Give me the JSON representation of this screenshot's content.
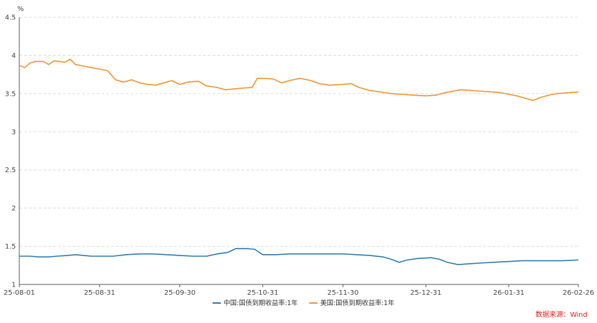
{
  "source_note": "数据来源：Wind",
  "chart_data": {
    "type": "line",
    "y_unit": "%",
    "ylim": [
      1,
      4.5
    ],
    "y_ticks": [
      "1",
      "1.5",
      "2",
      "2.5",
      "3",
      "3.5",
      "4",
      "4.5"
    ],
    "x_tick_labels": [
      "25-08-01",
      "25-08-31",
      "25-09-30",
      "25-10-31",
      "25-11-30",
      "25-12-31",
      "26-01-31",
      "26-02-26"
    ],
    "grid": "horizontal dashed",
    "legend_position": "bottom-center",
    "series": [
      {
        "name": "中国:国债到期收益率:1年",
        "color": "#2a7ab0",
        "points": [
          [
            "2025-08-01",
            1.37
          ],
          [
            "2025-08-05",
            1.37
          ],
          [
            "2025-08-08",
            1.36
          ],
          [
            "2025-08-12",
            1.36
          ],
          [
            "2025-08-15",
            1.37
          ],
          [
            "2025-08-19",
            1.38
          ],
          [
            "2025-08-22",
            1.39
          ],
          [
            "2025-08-25",
            1.38
          ],
          [
            "2025-08-28",
            1.37
          ],
          [
            "2025-08-31",
            1.37
          ],
          [
            "2025-09-05",
            1.37
          ],
          [
            "2025-09-10",
            1.39
          ],
          [
            "2025-09-15",
            1.4
          ],
          [
            "2025-09-20",
            1.4
          ],
          [
            "2025-09-25",
            1.39
          ],
          [
            "2025-09-30",
            1.38
          ],
          [
            "2025-10-05",
            1.37
          ],
          [
            "2025-10-10",
            1.37
          ],
          [
            "2025-10-14",
            1.4
          ],
          [
            "2025-10-18",
            1.42
          ],
          [
            "2025-10-21",
            1.47
          ],
          [
            "2025-10-25",
            1.47
          ],
          [
            "2025-10-28",
            1.46
          ],
          [
            "2025-10-31",
            1.39
          ],
          [
            "2025-11-05",
            1.39
          ],
          [
            "2025-11-10",
            1.4
          ],
          [
            "2025-11-15",
            1.4
          ],
          [
            "2025-11-20",
            1.4
          ],
          [
            "2025-11-25",
            1.4
          ],
          [
            "2025-11-30",
            1.4
          ],
          [
            "2025-12-05",
            1.39
          ],
          [
            "2025-12-10",
            1.38
          ],
          [
            "2025-12-15",
            1.36
          ],
          [
            "2025-12-18",
            1.33
          ],
          [
            "2025-12-21",
            1.29
          ],
          [
            "2025-12-24",
            1.32
          ],
          [
            "2025-12-28",
            1.34
          ],
          [
            "2026-01-02",
            1.35
          ],
          [
            "2026-01-05",
            1.33
          ],
          [
            "2026-01-08",
            1.29
          ],
          [
            "2026-01-12",
            1.26
          ],
          [
            "2026-01-16",
            1.27
          ],
          [
            "2026-01-20",
            1.28
          ],
          [
            "2026-01-25",
            1.29
          ],
          [
            "2026-01-31",
            1.3
          ],
          [
            "2026-02-05",
            1.31
          ],
          [
            "2026-02-10",
            1.31
          ],
          [
            "2026-02-15",
            1.31
          ],
          [
            "2026-02-20",
            1.31
          ],
          [
            "2026-02-26",
            1.32
          ]
        ]
      },
      {
        "name": "美国:国债到期收益率:1年",
        "color": "#f0922b",
        "points": [
          [
            "2025-08-01",
            3.87
          ],
          [
            "2025-08-03",
            3.84
          ],
          [
            "2025-08-05",
            3.9
          ],
          [
            "2025-08-07",
            3.92
          ],
          [
            "2025-08-10",
            3.92
          ],
          [
            "2025-08-12",
            3.88
          ],
          [
            "2025-08-14",
            3.93
          ],
          [
            "2025-08-18",
            3.91
          ],
          [
            "2025-08-20",
            3.95
          ],
          [
            "2025-08-22",
            3.88
          ],
          [
            "2025-08-25",
            3.86
          ],
          [
            "2025-08-28",
            3.84
          ],
          [
            "2025-08-31",
            3.82
          ],
          [
            "2025-09-03",
            3.8
          ],
          [
            "2025-09-06",
            3.68
          ],
          [
            "2025-09-09",
            3.65
          ],
          [
            "2025-09-12",
            3.68
          ],
          [
            "2025-09-15",
            3.64
          ],
          [
            "2025-09-18",
            3.62
          ],
          [
            "2025-09-21",
            3.61
          ],
          [
            "2025-09-24",
            3.64
          ],
          [
            "2025-09-27",
            3.67
          ],
          [
            "2025-09-30",
            3.62
          ],
          [
            "2025-10-03",
            3.65
          ],
          [
            "2025-10-07",
            3.66
          ],
          [
            "2025-10-10",
            3.6
          ],
          [
            "2025-10-14",
            3.58
          ],
          [
            "2025-10-17",
            3.55
          ],
          [
            "2025-10-20",
            3.56
          ],
          [
            "2025-10-23",
            3.57
          ],
          [
            "2025-10-27",
            3.58
          ],
          [
            "2025-10-29",
            3.7
          ],
          [
            "2025-10-31",
            3.7
          ],
          [
            "2025-11-04",
            3.69
          ],
          [
            "2025-11-07",
            3.64
          ],
          [
            "2025-11-10",
            3.67
          ],
          [
            "2025-11-14",
            3.7
          ],
          [
            "2025-11-18",
            3.67
          ],
          [
            "2025-11-21",
            3.63
          ],
          [
            "2025-11-25",
            3.61
          ],
          [
            "2025-11-30",
            3.62
          ],
          [
            "2025-12-03",
            3.63
          ],
          [
            "2025-12-06",
            3.58
          ],
          [
            "2025-12-10",
            3.54
          ],
          [
            "2025-12-14",
            3.52
          ],
          [
            "2025-12-18",
            3.5
          ],
          [
            "2025-12-22",
            3.49
          ],
          [
            "2025-12-26",
            3.48
          ],
          [
            "2025-12-31",
            3.47
          ],
          [
            "2026-01-04",
            3.48
          ],
          [
            "2026-01-07",
            3.51
          ],
          [
            "2026-01-10",
            3.53
          ],
          [
            "2026-01-13",
            3.55
          ],
          [
            "2026-01-17",
            3.54
          ],
          [
            "2026-01-21",
            3.53
          ],
          [
            "2026-01-25",
            3.52
          ],
          [
            "2026-01-28",
            3.51
          ],
          [
            "2026-01-31",
            3.49
          ],
          [
            "2026-02-03",
            3.47
          ],
          [
            "2026-02-06",
            3.44
          ],
          [
            "2026-02-09",
            3.41
          ],
          [
            "2026-02-12",
            3.45
          ],
          [
            "2026-02-15",
            3.48
          ],
          [
            "2026-02-18",
            3.5
          ],
          [
            "2026-02-22",
            3.51
          ],
          [
            "2026-02-26",
            3.52
          ]
        ]
      }
    ]
  }
}
